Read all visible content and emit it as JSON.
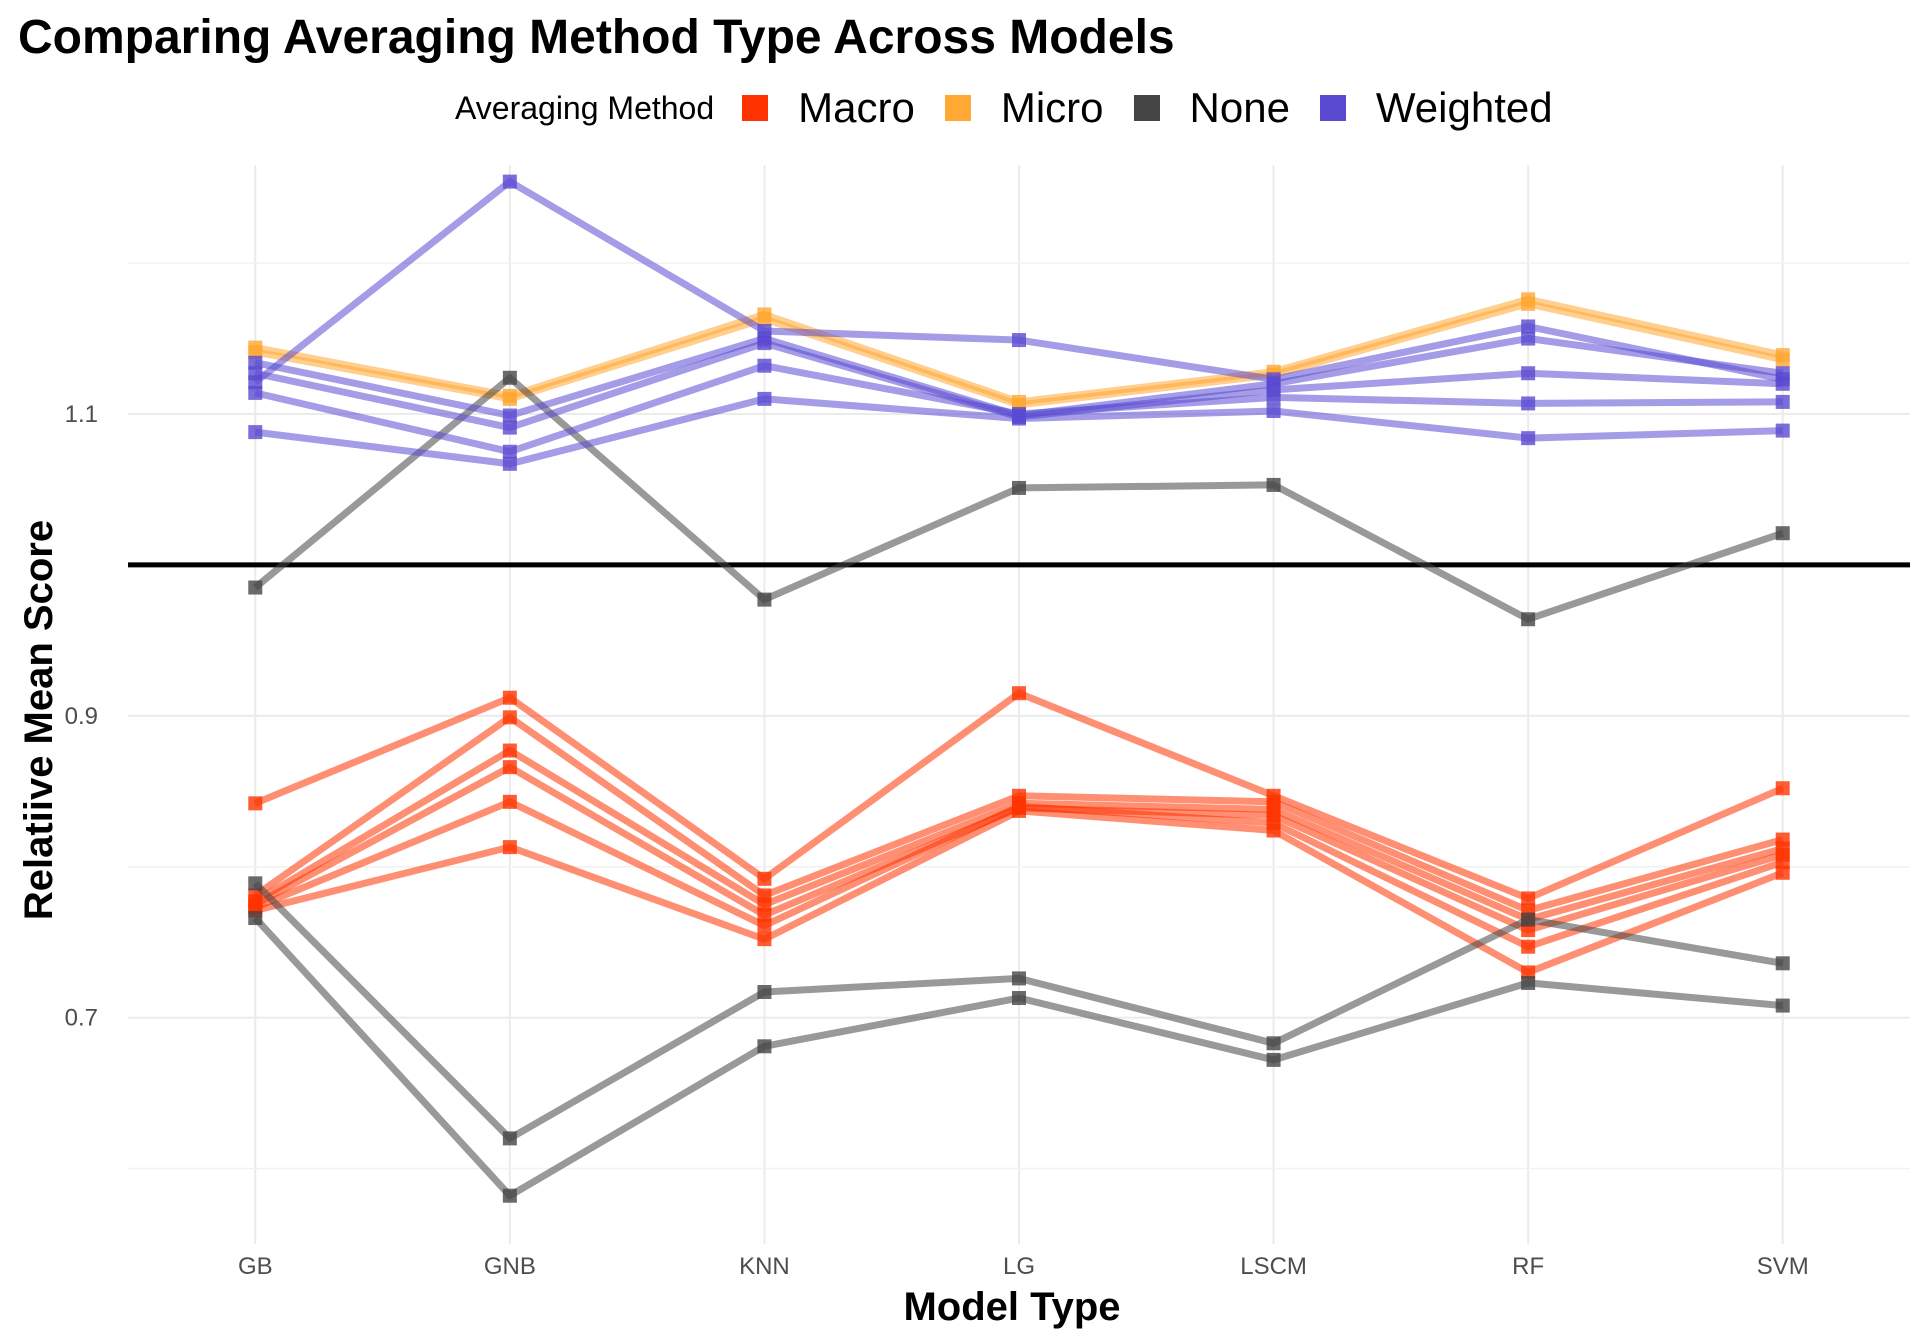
{
  "chart_data": {
    "type": "line",
    "title": "Comparing Averaging Method Type Across Models",
    "xlabel": "Model Type",
    "ylabel": "Relatiive Mean Score",
    "categories": [
      "GB",
      "GNB",
      "KNN",
      "LG",
      "LSCM",
      "RF",
      "SVM"
    ],
    "ylim": [
      0.55,
      1.265
    ],
    "yticks": [
      0.7,
      0.9,
      1.1
    ],
    "reference_line": 1.0,
    "grid": true,
    "legend": {
      "title": "Averaging Method",
      "position": "top",
      "entries": [
        {
          "name": "Macro",
          "color": "#ff3300"
        },
        {
          "name": "Micro",
          "color": "#ffa833"
        },
        {
          "name": "None",
          "color": "#454545"
        },
        {
          "name": "Weighted",
          "color": "#5a4ad1"
        }
      ]
    },
    "series": [
      {
        "group": "Macro",
        "values": [
          0.842,
          0.912,
          0.792,
          0.915,
          0.847,
          0.779,
          0.852
        ]
      },
      {
        "group": "Macro",
        "values": [
          0.781,
          0.899,
          0.781,
          0.847,
          0.843,
          0.771,
          0.818
        ]
      },
      {
        "group": "Macro",
        "values": [
          0.777,
          0.877,
          0.775,
          0.842,
          0.838,
          0.765,
          0.812
        ]
      },
      {
        "group": "Macro",
        "values": [
          0.775,
          0.866,
          0.768,
          0.839,
          0.834,
          0.758,
          0.808
        ]
      },
      {
        "group": "Macro",
        "values": [
          0.773,
          0.843,
          0.761,
          0.84,
          0.829,
          0.747,
          0.803
        ]
      },
      {
        "group": "Macro",
        "values": [
          0.771,
          0.813,
          0.752,
          0.837,
          0.824,
          0.73,
          0.796
        ]
      },
      {
        "group": "Micro",
        "values": [
          1.144,
          1.112,
          1.166,
          1.108,
          1.128,
          1.176,
          1.139
        ]
      },
      {
        "group": "Micro",
        "values": [
          1.141,
          1.11,
          1.163,
          1.106,
          1.126,
          1.173,
          1.136
        ]
      },
      {
        "group": "None",
        "values": [
          0.985,
          1.124,
          0.977,
          1.051,
          1.053,
          0.964,
          1.021
        ]
      },
      {
        "group": "None",
        "values": [
          0.789,
          0.62,
          0.717,
          0.726,
          0.683,
          0.765,
          0.736
        ]
      },
      {
        "group": "None",
        "values": [
          0.766,
          0.582,
          0.681,
          0.713,
          0.672,
          0.723,
          0.708
        ]
      },
      {
        "group": "Weighted",
        "values": [
          1.121,
          1.254,
          1.155,
          1.149,
          1.123,
          1.158,
          1.123
        ]
      },
      {
        "group": "Weighted",
        "values": [
          1.134,
          1.099,
          1.15,
          1.099,
          1.12,
          1.15,
          1.127
        ]
      },
      {
        "group": "Weighted",
        "values": [
          1.127,
          1.091,
          1.147,
          1.098,
          1.116,
          1.127,
          1.12
        ]
      },
      {
        "group": "Weighted",
        "values": [
          1.114,
          1.075,
          1.132,
          1.1,
          1.111,
          1.107,
          1.108
        ]
      },
      {
        "group": "Weighted",
        "values": [
          1.088,
          1.067,
          1.11,
          1.097,
          1.102,
          1.084,
          1.089
        ]
      }
    ]
  }
}
